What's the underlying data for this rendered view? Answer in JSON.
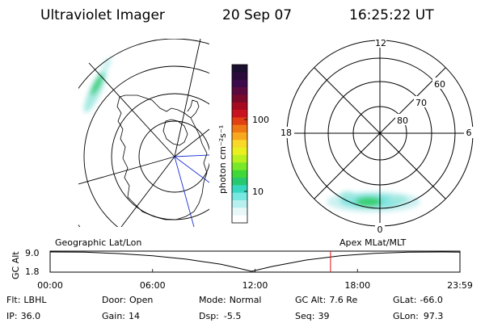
{
  "header": {
    "instrument": "Ultraviolet Imager",
    "date": "20 Sep 07",
    "time": "16:25:22 UT"
  },
  "colorbar": {
    "label": "photon cm⁻²s⁻¹",
    "ticks": [
      "100",
      "10"
    ],
    "colors": [
      "#1a0f2e",
      "#2a0a3a",
      "#3a0a4a",
      "#5a0a3e",
      "#7a0a2a",
      "#a50a1e",
      "#c8141e",
      "#e04012",
      "#f07814",
      "#f8a81e",
      "#f8d828",
      "#e8f020",
      "#b8f020",
      "#78e828",
      "#40d838",
      "#28c870",
      "#38d8c0",
      "#78e8e0",
      "#b8f0f0",
      "#e8f8f8",
      "#ffffff"
    ]
  },
  "geo_map": {
    "label": "Geographic Lat/Lon"
  },
  "polar_map": {
    "label": "Apex MLat/MLT",
    "mlt_labels": {
      "top": "12",
      "left": "18",
      "right": "6",
      "bottom": "0"
    },
    "lat_labels": [
      "60",
      "70",
      "80"
    ]
  },
  "gc_plot": {
    "ylabel": "GC Alt",
    "yticks": [
      "9.0",
      "1.8"
    ],
    "xticks": [
      "00:00",
      "06:00",
      "12:00",
      "18:00",
      "23:59"
    ],
    "marker_color": "#e01010"
  },
  "chart_data": {
    "type": "line",
    "title": "",
    "xlabel": "",
    "ylabel": "GC Alt",
    "x": [
      0,
      2,
      4,
      6,
      8,
      10,
      11,
      11.8,
      13,
      15,
      17,
      19,
      21,
      23,
      23.98
    ],
    "y": [
      9.0,
      8.9,
      8.4,
      7.6,
      6.3,
      4.4,
      3.0,
      1.8,
      3.6,
      6.0,
      7.6,
      8.5,
      8.9,
      9.0,
      8.9
    ],
    "xlim": [
      0,
      24
    ],
    "ylim": [
      1.8,
      9.0
    ],
    "marker_x": 16.42
  },
  "status": {
    "row1": [
      {
        "key": "Flt:",
        "val": "LBHL"
      },
      {
        "key": "Door:",
        "val": "Open"
      },
      {
        "key": "Mode:",
        "val": "Normal"
      },
      {
        "key": "GC Alt:",
        "val": "7.6 Re"
      },
      {
        "key": "GLat:",
        "val": "-66.0"
      }
    ],
    "row2": [
      {
        "key": "IP:",
        "val": "36.0"
      },
      {
        "key": "Gain:",
        "val": "14"
      },
      {
        "key": "Dsp:",
        "val": "-5.5"
      },
      {
        "key": "Seq:",
        "val": "39"
      },
      {
        "key": "GLon:",
        "val": "97.3"
      }
    ]
  }
}
